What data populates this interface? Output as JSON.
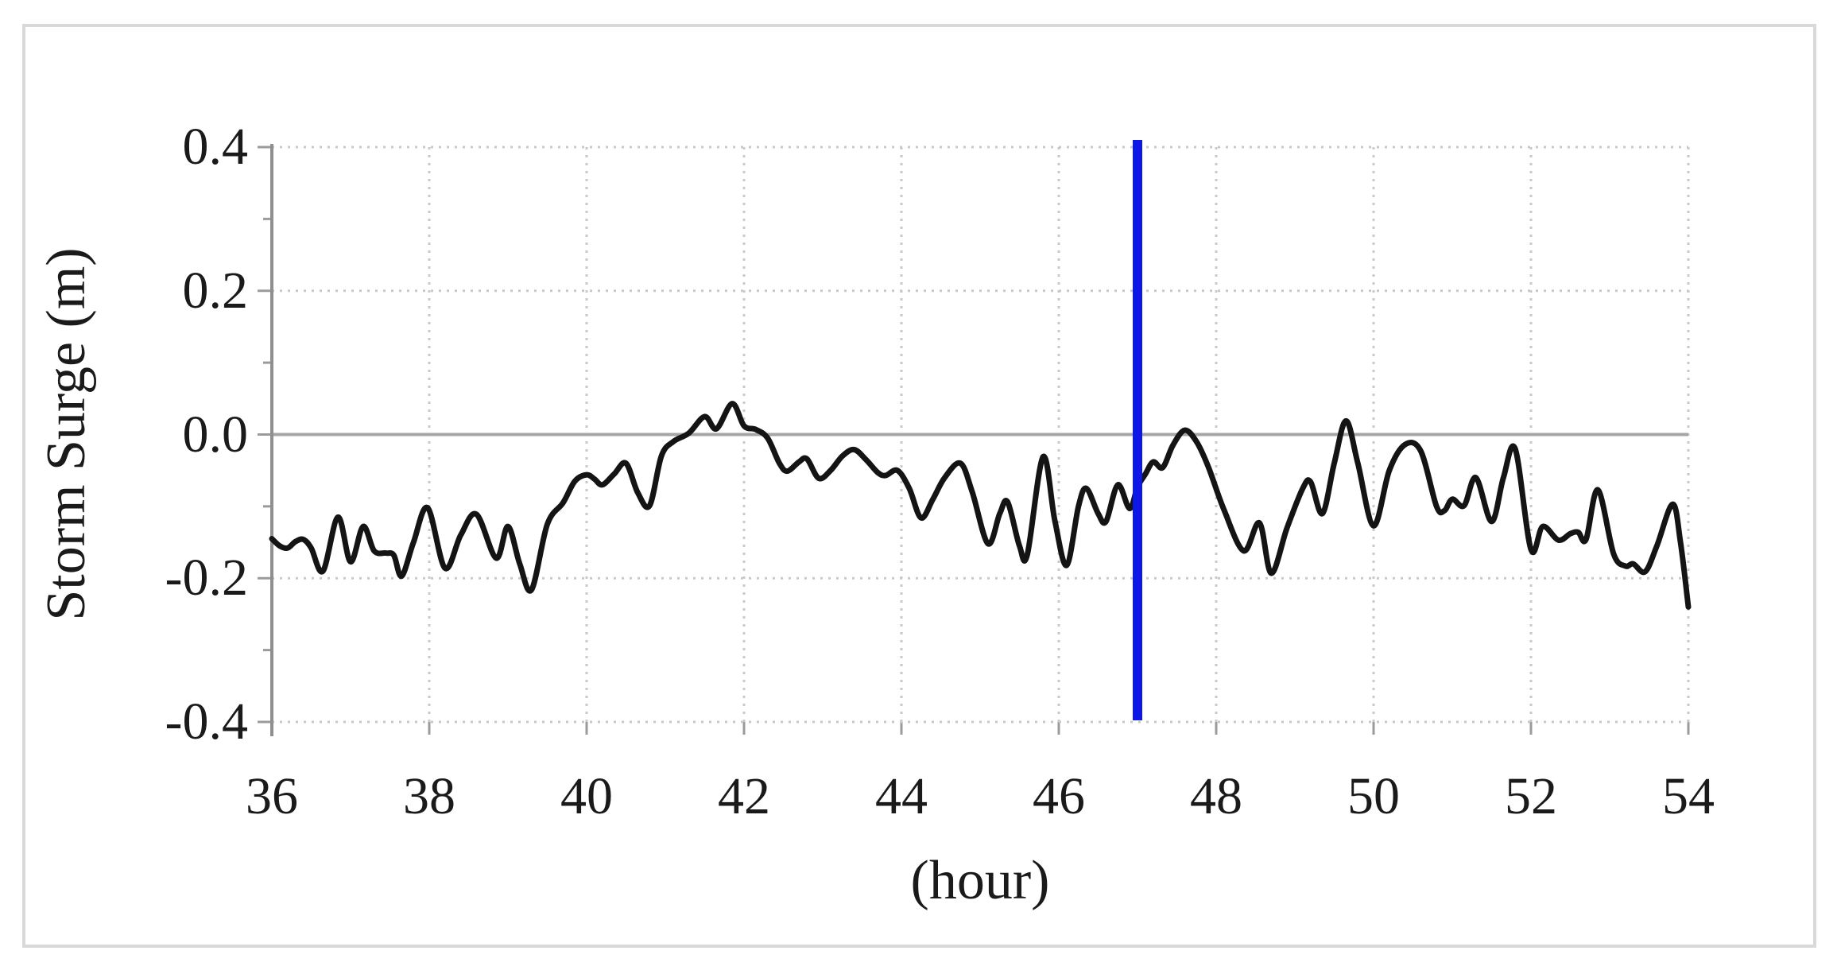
{
  "figure": {
    "background_color": "#ffffff",
    "frame_color": "#d9d9d9"
  },
  "chart_data": {
    "type": "line",
    "title": "",
    "xlabel": "(hour)",
    "ylabel": "Storm Surge (m)",
    "xlim": [
      36,
      54
    ],
    "ylim": [
      -0.4,
      0.4
    ],
    "grid": true,
    "legend_position": "none",
    "x_ticks": [
      36,
      38,
      40,
      42,
      44,
      46,
      48,
      50,
      52,
      54
    ],
    "x_tick_labels": [
      "36",
      "38",
      "40",
      "42",
      "44",
      "46",
      "48",
      "50",
      "52",
      "54"
    ],
    "y_ticks": [
      0.4,
      0.2,
      0.0,
      -0.2,
      -0.4
    ],
    "y_tick_labels": [
      "0.4",
      "0.2",
      "0.0",
      "-0.2",
      "-0.4"
    ],
    "y_minor_ticks": [
      0.3,
      0.1,
      -0.1,
      -0.3
    ],
    "colors": {
      "series": "#141414",
      "event_line": "#0d17e8",
      "grid": "#c9c9c9",
      "zero_axis": "#a6a6a6",
      "y_axis": "#8f8f8f",
      "tick": "#9b9b9b",
      "text": "#1a1a1a"
    },
    "annotations": [
      {
        "type": "vline",
        "x": 47.0,
        "color": "#0d17e8",
        "label": ""
      }
    ],
    "series": [
      {
        "name": "storm surge",
        "color": "#141414",
        "points": [
          [
            36.0,
            -0.145
          ],
          [
            36.1,
            -0.155
          ],
          [
            36.2,
            -0.158
          ],
          [
            36.3,
            -0.149
          ],
          [
            36.4,
            -0.146
          ],
          [
            36.5,
            -0.158
          ],
          [
            36.65,
            -0.19
          ],
          [
            36.84,
            -0.115
          ],
          [
            37.0,
            -0.177
          ],
          [
            37.16,
            -0.128
          ],
          [
            37.3,
            -0.162
          ],
          [
            37.45,
            -0.165
          ],
          [
            37.55,
            -0.168
          ],
          [
            37.65,
            -0.197
          ],
          [
            37.8,
            -0.15
          ],
          [
            37.98,
            -0.102
          ],
          [
            38.2,
            -0.186
          ],
          [
            38.4,
            -0.14
          ],
          [
            38.6,
            -0.111
          ],
          [
            38.85,
            -0.172
          ],
          [
            39.0,
            -0.128
          ],
          [
            39.15,
            -0.18
          ],
          [
            39.3,
            -0.216
          ],
          [
            39.5,
            -0.125
          ],
          [
            39.7,
            -0.095
          ],
          [
            39.85,
            -0.065
          ],
          [
            40.0,
            -0.056
          ],
          [
            40.1,
            -0.062
          ],
          [
            40.2,
            -0.07
          ],
          [
            40.35,
            -0.055
          ],
          [
            40.5,
            -0.04
          ],
          [
            40.65,
            -0.081
          ],
          [
            40.8,
            -0.099
          ],
          [
            40.95,
            -0.03
          ],
          [
            41.1,
            -0.01
          ],
          [
            41.3,
            0.002
          ],
          [
            41.5,
            0.025
          ],
          [
            41.65,
            0.008
          ],
          [
            41.85,
            0.043
          ],
          [
            42.0,
            0.012
          ],
          [
            42.15,
            0.007
          ],
          [
            42.3,
            -0.005
          ],
          [
            42.45,
            -0.04
          ],
          [
            42.55,
            -0.051
          ],
          [
            42.7,
            -0.038
          ],
          [
            42.8,
            -0.034
          ],
          [
            42.95,
            -0.061
          ],
          [
            43.1,
            -0.05
          ],
          [
            43.25,
            -0.03
          ],
          [
            43.4,
            -0.021
          ],
          [
            43.55,
            -0.035
          ],
          [
            43.7,
            -0.053
          ],
          [
            43.8,
            -0.057
          ],
          [
            43.95,
            -0.05
          ],
          [
            44.1,
            -0.075
          ],
          [
            44.25,
            -0.116
          ],
          [
            44.4,
            -0.09
          ],
          [
            44.55,
            -0.06
          ],
          [
            44.75,
            -0.04
          ],
          [
            44.9,
            -0.08
          ],
          [
            45.1,
            -0.152
          ],
          [
            45.25,
            -0.11
          ],
          [
            45.35,
            -0.094
          ],
          [
            45.5,
            -0.155
          ],
          [
            45.6,
            -0.167
          ],
          [
            45.8,
            -0.031
          ],
          [
            45.95,
            -0.12
          ],
          [
            46.1,
            -0.182
          ],
          [
            46.25,
            -0.1
          ],
          [
            46.35,
            -0.075
          ],
          [
            46.5,
            -0.11
          ],
          [
            46.6,
            -0.121
          ],
          [
            46.75,
            -0.07
          ],
          [
            46.9,
            -0.103
          ],
          [
            47.0,
            -0.073
          ],
          [
            47.1,
            -0.055
          ],
          [
            47.2,
            -0.038
          ],
          [
            47.32,
            -0.046
          ],
          [
            47.45,
            -0.015
          ],
          [
            47.6,
            0.006
          ],
          [
            47.75,
            -0.01
          ],
          [
            47.9,
            -0.045
          ],
          [
            48.1,
            -0.105
          ],
          [
            48.35,
            -0.162
          ],
          [
            48.55,
            -0.123
          ],
          [
            48.7,
            -0.193
          ],
          [
            48.9,
            -0.13
          ],
          [
            49.1,
            -0.075
          ],
          [
            49.2,
            -0.066
          ],
          [
            49.35,
            -0.11
          ],
          [
            49.5,
            -0.04
          ],
          [
            49.65,
            0.019
          ],
          [
            49.8,
            -0.04
          ],
          [
            50.0,
            -0.127
          ],
          [
            50.2,
            -0.05
          ],
          [
            50.4,
            -0.014
          ],
          [
            50.6,
            -0.023
          ],
          [
            50.8,
            -0.1
          ],
          [
            50.9,
            -0.106
          ],
          [
            51.0,
            -0.09
          ],
          [
            51.15,
            -0.099
          ],
          [
            51.3,
            -0.06
          ],
          [
            51.5,
            -0.121
          ],
          [
            51.65,
            -0.06
          ],
          [
            51.8,
            -0.02
          ],
          [
            52.0,
            -0.16
          ],
          [
            52.15,
            -0.128
          ],
          [
            52.35,
            -0.147
          ],
          [
            52.5,
            -0.138
          ],
          [
            52.6,
            -0.136
          ],
          [
            52.7,
            -0.146
          ],
          [
            52.85,
            -0.077
          ],
          [
            53.05,
            -0.166
          ],
          [
            53.2,
            -0.183
          ],
          [
            53.3,
            -0.18
          ],
          [
            53.45,
            -0.191
          ],
          [
            53.6,
            -0.155
          ],
          [
            53.8,
            -0.097
          ],
          [
            53.9,
            -0.15
          ],
          [
            54.0,
            -0.24
          ]
        ]
      }
    ]
  }
}
